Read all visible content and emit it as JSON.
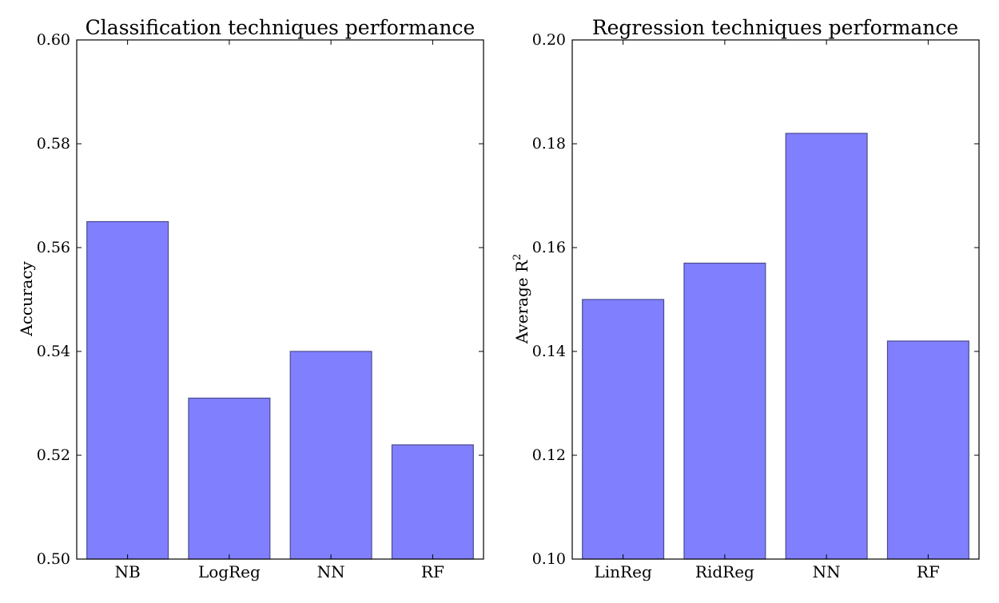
{
  "chart_data": [
    {
      "type": "bar",
      "title": "Classification techniques performance",
      "xlabel": "",
      "ylabel": "Accuracy",
      "categories": [
        "NB",
        "LogReg",
        "NN",
        "RF"
      ],
      "values": [
        0.565,
        0.531,
        0.54,
        0.522
      ],
      "ylim": [
        0.5,
        0.6
      ],
      "yticks": [
        "0.50",
        "0.52",
        "0.54",
        "0.56",
        "0.58",
        "0.60"
      ],
      "bar_color": "#8080ff",
      "grid": false
    },
    {
      "type": "bar",
      "title": "Regression techniques performance",
      "xlabel": "",
      "ylabel": "Average R",
      "ylabel_superscript": "2",
      "categories": [
        "LinReg",
        "RidReg",
        "NN",
        "RF"
      ],
      "values": [
        0.15,
        0.157,
        0.182,
        0.142
      ],
      "ylim": [
        0.1,
        0.2
      ],
      "yticks": [
        "0.10",
        "0.12",
        "0.14",
        "0.16",
        "0.18",
        "0.20"
      ],
      "bar_color": "#8080ff",
      "grid": false
    }
  ]
}
